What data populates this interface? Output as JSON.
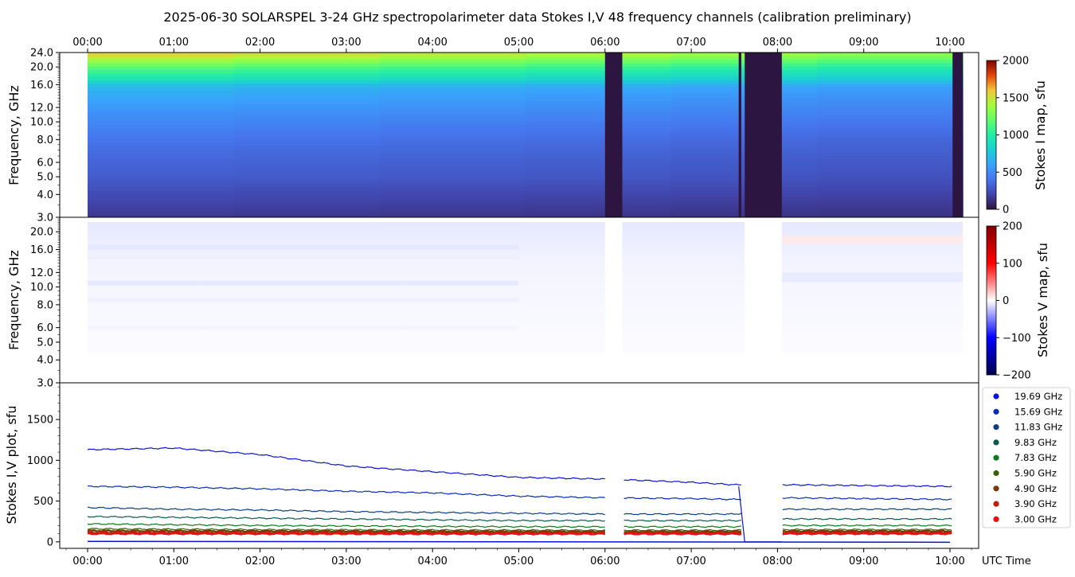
{
  "title": "2025-06-30  SOLARSPEL  3-24 GHz spectropolarimeter data   Stokes I,V   48 frequency channels   (calibration preliminary)",
  "chart_data": [
    {
      "type": "heatmap",
      "name": "stokes-i-map",
      "ylabel": "Frequency, GHz",
      "colorbar_label": "Stokes I map, sfu",
      "colorbar_ticks": [
        "0",
        "500",
        "1000",
        "1500",
        "2000"
      ],
      "clim": [
        0,
        2000
      ],
      "yscale": "log",
      "ylim": [
        3.0,
        24.0
      ],
      "yticks": [
        "3.0",
        "4.0",
        "5.0",
        "6.0",
        "8.0",
        "10.0",
        "12.0",
        "16.0",
        "20.0",
        "24.0"
      ],
      "xticks_top": [
        "00:00",
        "01:00",
        "02:00",
        "03:00",
        "04:00",
        "05:00",
        "06:00",
        "07:00",
        "08:00",
        "09:00",
        "10:00"
      ],
      "xlim_hours": [
        -0.33,
        10.33
      ],
      "data_start_hour": 0.0,
      "data_end_hour": 10.15,
      "gaps_hours": [
        [
          6.0,
          6.2
        ],
        [
          7.55,
          7.58
        ],
        [
          7.62,
          8.05
        ],
        [
          10.03,
          10.15
        ]
      ],
      "profile": [
        {
          "f": 3.0,
          "v": 150
        },
        {
          "f": 5.0,
          "v": 300
        },
        {
          "f": 6.5,
          "v": 350
        },
        {
          "f": 8.0,
          "v": 400
        },
        {
          "f": 10.0,
          "v": 480
        },
        {
          "f": 12.0,
          "v": 560
        },
        {
          "f": 15.7,
          "v": 700
        },
        {
          "f": 17.0,
          "v": 900
        },
        {
          "f": 19.7,
          "v": 1150
        },
        {
          "f": 22.0,
          "v": 1400
        },
        {
          "f": 24.0,
          "v": 1600
        }
      ]
    },
    {
      "type": "heatmap",
      "name": "stokes-v-map",
      "ylabel": "Frequency, GHz",
      "colorbar_label": "Stokes V map, sfu",
      "colorbar_ticks": [
        "200",
        "100",
        "0",
        "−100",
        "−200"
      ],
      "clim": [
        -200,
        200
      ],
      "yscale": "log",
      "ylim": [
        3.0,
        24.0
      ],
      "yticks": [
        "3.0",
        "4.0",
        "5.0",
        "6.0",
        "8.0",
        "10.0",
        "12.0",
        "16.0",
        "20.0"
      ]
    },
    {
      "type": "line",
      "name": "stokes-iv-plot",
      "ylabel": "Stokes I,V plot, sfu",
      "xlabel": "UTC Time",
      "ylim": [
        -80,
        1950
      ],
      "yticks": [
        0,
        500,
        1000,
        1500
      ],
      "xticks": [
        "00:00",
        "01:00",
        "02:00",
        "03:00",
        "04:00",
        "05:00",
        "06:00",
        "07:00",
        "08:00",
        "09:00",
        "10:00"
      ],
      "x_hours": [
        0,
        1,
        2,
        3,
        4,
        5,
        6,
        7,
        7.5,
        8.05,
        9,
        10
      ],
      "series": [
        {
          "name": "19.69 GHz",
          "color": "#0b13d6",
          "values": [
            1130,
            1150,
            1070,
            930,
            860,
            790,
            770,
            730,
            700,
            700,
            690,
            680
          ]
        },
        {
          "name": "15.69 GHz",
          "color": "#0a2cb8",
          "values": [
            680,
            670,
            650,
            620,
            600,
            560,
            540,
            530,
            520,
            540,
            530,
            520
          ]
        },
        {
          "name": "11.83 GHz",
          "color": "#0c3f7e",
          "values": [
            420,
            400,
            390,
            370,
            360,
            350,
            340,
            340,
            340,
            400,
            400,
            400
          ]
        },
        {
          "name": "9.83 GHz",
          "color": "#0c5a4e",
          "values": [
            310,
            300,
            290,
            280,
            270,
            260,
            260,
            260,
            260,
            280,
            280,
            280
          ]
        },
        {
          "name": "7.83 GHz",
          "color": "#0b7a1c",
          "values": [
            220,
            210,
            200,
            195,
            190,
            185,
            185,
            185,
            185,
            200,
            200,
            200
          ]
        },
        {
          "name": "5.90 GHz",
          "color": "#3b5e0b",
          "values": [
            160,
            155,
            150,
            148,
            145,
            143,
            142,
            142,
            142,
            150,
            150,
            150
          ]
        },
        {
          "name": "4.90 GHz",
          "color": "#7a3b05",
          "values": [
            135,
            132,
            130,
            128,
            126,
            125,
            124,
            124,
            124,
            130,
            130,
            130
          ]
        },
        {
          "name": "3.90 GHz",
          "color": "#c41a0a",
          "values": [
            110,
            110,
            108,
            108,
            107,
            106,
            106,
            106,
            106,
            110,
            110,
            110
          ]
        },
        {
          "name": "3.00 GHz",
          "color": "#ee1010",
          "values": [
            100,
            100,
            99,
            99,
            98,
            98,
            98,
            98,
            98,
            100,
            100,
            100
          ]
        }
      ],
      "gaps_hours": [
        [
          6.0,
          6.2
        ],
        [
          7.58,
          8.05
        ]
      ],
      "legend_position": "right"
    }
  ]
}
